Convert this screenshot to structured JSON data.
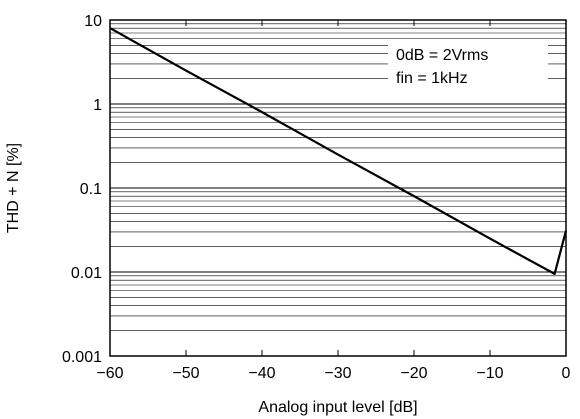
{
  "chart_data": {
    "type": "line",
    "xlabel": "Analog input level [dB]",
    "ylabel": "THD + N [%]",
    "xlim": [
      -60,
      0
    ],
    "ylim": [
      0.001,
      10
    ],
    "y_scale": "log",
    "grid": "horizontal log minor lines",
    "x_ticks": [
      "−60",
      "−50",
      "−40",
      "−30",
      "−20",
      "−10",
      "0"
    ],
    "x_tick_values": [
      -60,
      -50,
      -40,
      -30,
      -20,
      -10,
      0
    ],
    "y_ticks": [
      "0.001",
      "0.01",
      "0.1",
      "1",
      "10"
    ],
    "y_tick_values": [
      0.001,
      0.01,
      0.1,
      1,
      10
    ],
    "annotations": [
      "0dB = 2Vrms",
      "fin = 1kHz"
    ],
    "series": [
      {
        "x": [
          -60,
          -50,
          -40,
          -30,
          -20,
          -10,
          -1.5,
          0
        ],
        "y": [
          8,
          2.5,
          0.8,
          0.25,
          0.08,
          0.025,
          0.0095,
          0.031
        ]
      }
    ],
    "colors": {
      "line": "#000000",
      "grid": "#000000",
      "background": "#ffffff"
    }
  }
}
